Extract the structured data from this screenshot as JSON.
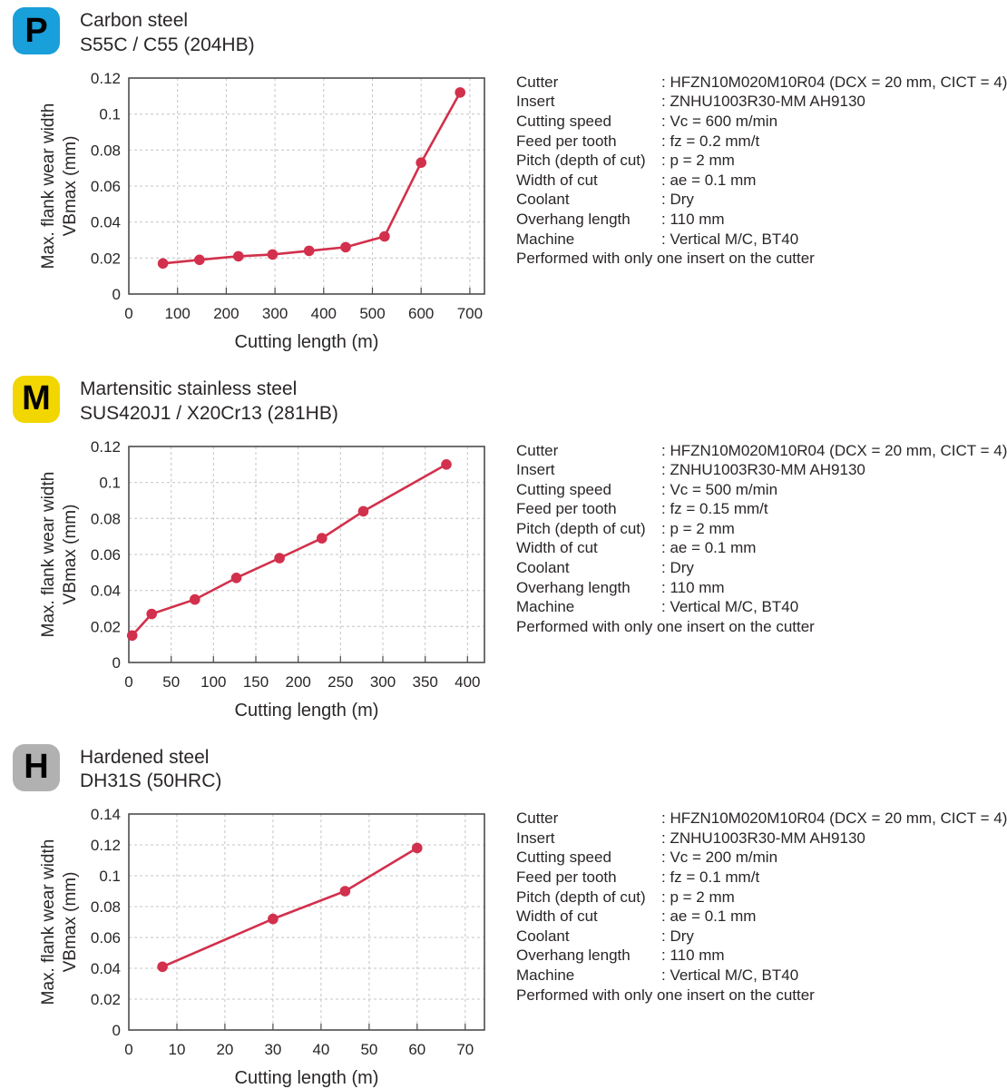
{
  "page": {
    "background": "#ffffff",
    "text_color": "#2a2627"
  },
  "sections": [
    {
      "badge": {
        "letter": "P",
        "color": "#199fd9"
      },
      "title": "Carbon steel",
      "subtitle": "S55C / C55 (204HB)",
      "specs": [
        {
          "label": "Cutter",
          "value": ": HFZN10M020M10R04 (DCX = 20 mm, CICT = 4)"
        },
        {
          "label": "Insert",
          "value": ": ZNHU1003R30-MM AH9130"
        },
        {
          "label": "Cutting speed",
          "value": ": Vc = 600 m/min"
        },
        {
          "label": "Feed per tooth",
          "value": ": fz = 0.2 mm/t"
        },
        {
          "label": "Pitch (depth of cut)",
          "value": ": p = 2 mm"
        },
        {
          "label": "Width of cut",
          "value": ": ae = 0.1 mm"
        },
        {
          "label": "Coolant",
          "value": ": Dry"
        },
        {
          "label": "Overhang length",
          "value": ": 110 mm"
        },
        {
          "label": "Machine",
          "value": ": Vertical M/C, BT40"
        }
      ],
      "footnote": "Performed with only one insert on the cutter"
    },
    {
      "badge": {
        "letter": "M",
        "color": "#f2d600"
      },
      "title": "Martensitic stainless steel",
      "subtitle": "SUS420J1 / X20Cr13 (281HB)",
      "specs": [
        {
          "label": "Cutter",
          "value": ": HFZN10M020M10R04 (DCX = 20 mm, CICT = 4)"
        },
        {
          "label": "Insert",
          "value": ": ZNHU1003R30-MM AH9130"
        },
        {
          "label": "Cutting speed",
          "value": ": Vc = 500 m/min"
        },
        {
          "label": "Feed per tooth",
          "value": ": fz = 0.15 mm/t"
        },
        {
          "label": "Pitch (depth of cut)",
          "value": ": p = 2 mm"
        },
        {
          "label": "Width of cut",
          "value": ": ae = 0.1 mm"
        },
        {
          "label": "Coolant",
          "value": ": Dry"
        },
        {
          "label": "Overhang length",
          "value": ": 110 mm"
        },
        {
          "label": "Machine",
          "value": ": Vertical M/C, BT40"
        }
      ],
      "footnote": "Performed with only one insert on the cutter"
    },
    {
      "badge": {
        "letter": "H",
        "color": "#b1b1b1"
      },
      "title": "Hardened steel",
      "subtitle": "DH31S (50HRC)",
      "specs": [
        {
          "label": "Cutter",
          "value": ": HFZN10M020M10R04 (DCX = 20 mm, CICT = 4)"
        },
        {
          "label": "Insert",
          "value": ": ZNHU1003R30-MM AH9130"
        },
        {
          "label": "Cutting speed",
          "value": ": Vc = 200 m/min"
        },
        {
          "label": "Feed per tooth",
          "value": ": fz = 0.1 mm/t"
        },
        {
          "label": "Pitch (depth of cut)",
          "value": ": p = 2 mm"
        },
        {
          "label": "Width of cut",
          "value": ": ae = 0.1 mm"
        },
        {
          "label": "Coolant",
          "value": ": Dry"
        },
        {
          "label": "Overhang length",
          "value": ": 110 mm"
        },
        {
          "label": "Machine",
          "value": ": Vertical M/C, BT40"
        }
      ],
      "footnote": "Performed with only one insert on the cutter"
    }
  ],
  "chart_data": [
    {
      "type": "line",
      "title": "Carbon steel S55C / C55 (204HB)",
      "xlabel": "Cutting length (m)",
      "ylabel": "Max. flank wear width VBmax (mm)",
      "ylabel_lines": [
        "Max. flank wear width",
        "VBmax (mm)"
      ],
      "x": [
        70,
        145,
        225,
        295,
        370,
        445,
        525,
        600,
        680
      ],
      "y": [
        0.017,
        0.019,
        0.021,
        0.022,
        0.024,
        0.026,
        0.032,
        0.073,
        0.112
      ],
      "xlim": [
        0,
        730
      ],
      "ylim": [
        0,
        0.12
      ],
      "xticks": [
        0,
        100,
        200,
        300,
        400,
        500,
        600,
        700
      ],
      "yticks": [
        0,
        0.02,
        0.04,
        0.06,
        0.08,
        0.1,
        0.12
      ],
      "grid": true,
      "legend": "none",
      "line_color": "#d2304c",
      "marker": "circle"
    },
    {
      "type": "line",
      "title": "Martensitic stainless steel SUS420J1 / X20Cr13 (281HB)",
      "xlabel": "Cutting length (m)",
      "ylabel": "Max. flank wear width VBmax (mm)",
      "ylabel_lines": [
        "Max. flank wear width",
        "VBmax (mm)"
      ],
      "x": [
        4,
        27,
        78,
        127,
        178,
        228,
        277,
        375
      ],
      "y": [
        0.015,
        0.027,
        0.035,
        0.047,
        0.058,
        0.069,
        0.084,
        0.11
      ],
      "xlim": [
        0,
        420
      ],
      "ylim": [
        0,
        0.12
      ],
      "xticks": [
        0,
        50,
        100,
        150,
        200,
        250,
        300,
        350,
        400
      ],
      "yticks": [
        0,
        0.02,
        0.04,
        0.06,
        0.08,
        0.1,
        0.12
      ],
      "grid": true,
      "legend": "none",
      "line_color": "#d2304c",
      "marker": "circle"
    },
    {
      "type": "line",
      "title": "Hardened steel DH31S (50HRC)",
      "xlabel": "Cutting length (m)",
      "ylabel": "Max. flank wear width VBmax (mm)",
      "ylabel_lines": [
        "Max. flank wear width",
        "VBmax (mm)"
      ],
      "x": [
        7,
        30,
        45,
        60
      ],
      "y": [
        0.041,
        0.072,
        0.09,
        0.118
      ],
      "xlim": [
        0,
        74
      ],
      "ylim": [
        0,
        0.14
      ],
      "xticks": [
        0,
        10,
        20,
        30,
        40,
        50,
        60,
        70
      ],
      "yticks": [
        0,
        0.02,
        0.04,
        0.06,
        0.08,
        0.1,
        0.12,
        0.14
      ],
      "grid": true,
      "legend": "none",
      "line_color": "#d2304c",
      "marker": "circle"
    }
  ]
}
